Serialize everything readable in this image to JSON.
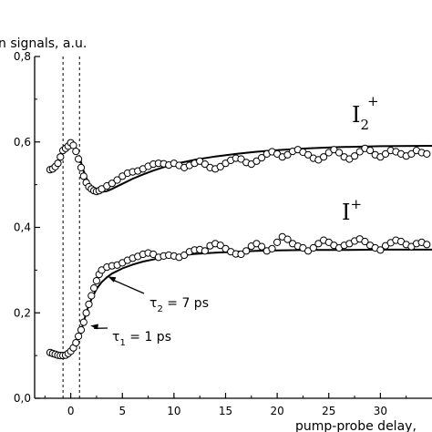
{
  "chart_data": {
    "type": "scatter",
    "ylabel": "n signals, a.u.",
    "xlabel": "pump-probe delay,",
    "xlim": [
      -3.5,
      35
    ],
    "ylim": [
      0,
      0.8
    ],
    "xticks": [
      0,
      5,
      10,
      15,
      20,
      25,
      30
    ],
    "xtick_labels": [
      "0",
      "5",
      "10",
      "15",
      "20",
      "25",
      "30"
    ],
    "yticks": [
      0,
      0.2,
      0.4,
      0.6,
      0.8
    ],
    "ytick_labels": [
      "0,0",
      "0,2",
      "0,4",
      "0,6",
      "0,8"
    ],
    "vlines": [
      -0.75,
      0.85
    ],
    "series": [
      {
        "name": "I2+",
        "label_main": "I",
        "label_sub": "2",
        "label_sup": "+",
        "points": [
          [
            -2.0,
            0.535
          ],
          [
            -1.75,
            0.537
          ],
          [
            -1.5,
            0.542
          ],
          [
            -1.25,
            0.55
          ],
          [
            -1.0,
            0.565
          ],
          [
            -0.75,
            0.58
          ],
          [
            -0.5,
            0.585
          ],
          [
            -0.25,
            0.59
          ],
          [
            0.0,
            0.598
          ],
          [
            0.25,
            0.592
          ],
          [
            0.5,
            0.578
          ],
          [
            0.75,
            0.56
          ],
          [
            1.0,
            0.54
          ],
          [
            1.25,
            0.52
          ],
          [
            1.5,
            0.505
          ],
          [
            1.75,
            0.495
          ],
          [
            2.0,
            0.49
          ],
          [
            2.25,
            0.486
          ],
          [
            2.5,
            0.484
          ],
          [
            2.75,
            0.486
          ],
          [
            3.0,
            0.49
          ],
          [
            3.5,
            0.497
          ],
          [
            4.0,
            0.503
          ],
          [
            4.5,
            0.511
          ],
          [
            5.0,
            0.52
          ],
          [
            5.5,
            0.527
          ],
          [
            6.0,
            0.53
          ],
          [
            6.5,
            0.532
          ],
          [
            7.0,
            0.537
          ],
          [
            7.5,
            0.543
          ],
          [
            8.0,
            0.548
          ],
          [
            8.5,
            0.55
          ],
          [
            9.0,
            0.549
          ],
          [
            9.5,
            0.546
          ],
          [
            10.0,
            0.55
          ],
          [
            10.5,
            0.545
          ],
          [
            11.0,
            0.54
          ],
          [
            11.5,
            0.545
          ],
          [
            12.0,
            0.55
          ],
          [
            12.5,
            0.555
          ],
          [
            13.0,
            0.548
          ],
          [
            13.5,
            0.54
          ],
          [
            14.0,
            0.537
          ],
          [
            14.5,
            0.542
          ],
          [
            15.0,
            0.55
          ],
          [
            15.5,
            0.557
          ],
          [
            16.0,
            0.562
          ],
          [
            16.5,
            0.56
          ],
          [
            17.0,
            0.552
          ],
          [
            17.5,
            0.548
          ],
          [
            18.0,
            0.555
          ],
          [
            18.5,
            0.563
          ],
          [
            19.0,
            0.572
          ],
          [
            19.5,
            0.577
          ],
          [
            20.0,
            0.572
          ],
          [
            20.5,
            0.565
          ],
          [
            21.0,
            0.57
          ],
          [
            21.5,
            0.578
          ],
          [
            22.0,
            0.582
          ],
          [
            22.5,
            0.576
          ],
          [
            23.0,
            0.57
          ],
          [
            23.5,
            0.562
          ],
          [
            24.0,
            0.558
          ],
          [
            24.5,
            0.565
          ],
          [
            25.0,
            0.575
          ],
          [
            25.5,
            0.582
          ],
          [
            26.0,
            0.575
          ],
          [
            26.5,
            0.565
          ],
          [
            27.0,
            0.56
          ],
          [
            27.5,
            0.567
          ],
          [
            28.0,
            0.577
          ],
          [
            28.5,
            0.585
          ],
          [
            29.0,
            0.58
          ],
          [
            29.5,
            0.57
          ],
          [
            30.0,
            0.565
          ],
          [
            30.5,
            0.572
          ],
          [
            31.0,
            0.58
          ],
          [
            31.5,
            0.577
          ],
          [
            32.0,
            0.572
          ],
          [
            32.5,
            0.567
          ],
          [
            33.0,
            0.572
          ],
          [
            33.5,
            0.58
          ],
          [
            34.0,
            0.575
          ],
          [
            34.5,
            0.572
          ]
        ],
        "fit": [
          [
            0.85,
            0.565
          ],
          [
            1.2,
            0.535
          ],
          [
            1.6,
            0.51
          ],
          [
            2.0,
            0.495
          ],
          [
            2.5,
            0.486
          ],
          [
            3.0,
            0.483
          ],
          [
            3.5,
            0.485
          ],
          [
            4.0,
            0.49
          ],
          [
            5.0,
            0.502
          ],
          [
            6.0,
            0.514
          ],
          [
            7.0,
            0.524
          ],
          [
            8.0,
            0.533
          ],
          [
            9.0,
            0.541
          ],
          [
            10.0,
            0.548
          ],
          [
            12.0,
            0.558
          ],
          [
            14.0,
            0.566
          ],
          [
            16.0,
            0.572
          ],
          [
            18.0,
            0.577
          ],
          [
            20.0,
            0.581
          ],
          [
            23.0,
            0.585
          ],
          [
            26.0,
            0.588
          ],
          [
            30.0,
            0.59
          ],
          [
            35.0,
            0.591
          ]
        ]
      },
      {
        "name": "I+",
        "label_main": "I",
        "label_sup": "+",
        "points": [
          [
            -2.0,
            0.107
          ],
          [
            -1.75,
            0.105
          ],
          [
            -1.5,
            0.103
          ],
          [
            -1.25,
            0.101
          ],
          [
            -1.0,
            0.1
          ],
          [
            -0.75,
            0.1
          ],
          [
            -0.5,
            0.101
          ],
          [
            -0.25,
            0.105
          ],
          [
            0.0,
            0.11
          ],
          [
            0.25,
            0.118
          ],
          [
            0.5,
            0.13
          ],
          [
            0.75,
            0.145
          ],
          [
            1.0,
            0.16
          ],
          [
            1.25,
            0.178
          ],
          [
            1.5,
            0.2
          ],
          [
            1.75,
            0.22
          ],
          [
            2.0,
            0.24
          ],
          [
            2.25,
            0.258
          ],
          [
            2.5,
            0.275
          ],
          [
            2.75,
            0.29
          ],
          [
            3.0,
            0.3
          ],
          [
            3.5,
            0.307
          ],
          [
            4.0,
            0.31
          ],
          [
            4.5,
            0.312
          ],
          [
            5.0,
            0.317
          ],
          [
            5.5,
            0.323
          ],
          [
            6.0,
            0.328
          ],
          [
            6.5,
            0.332
          ],
          [
            7.0,
            0.337
          ],
          [
            7.5,
            0.34
          ],
          [
            8.0,
            0.337
          ],
          [
            8.5,
            0.33
          ],
          [
            9.0,
            0.333
          ],
          [
            9.5,
            0.335
          ],
          [
            10.0,
            0.333
          ],
          [
            10.5,
            0.33
          ],
          [
            11.0,
            0.335
          ],
          [
            11.5,
            0.343
          ],
          [
            12.0,
            0.347
          ],
          [
            12.5,
            0.348
          ],
          [
            13.0,
            0.345
          ],
          [
            13.5,
            0.357
          ],
          [
            14.0,
            0.362
          ],
          [
            14.5,
            0.358
          ],
          [
            15.0,
            0.35
          ],
          [
            15.5,
            0.343
          ],
          [
            16.0,
            0.338
          ],
          [
            16.5,
            0.337
          ],
          [
            17.0,
            0.345
          ],
          [
            17.5,
            0.356
          ],
          [
            18.0,
            0.362
          ],
          [
            18.5,
            0.355
          ],
          [
            19.0,
            0.345
          ],
          [
            19.5,
            0.35
          ],
          [
            20.0,
            0.365
          ],
          [
            20.5,
            0.378
          ],
          [
            21.0,
            0.372
          ],
          [
            21.5,
            0.362
          ],
          [
            22.0,
            0.356
          ],
          [
            22.5,
            0.352
          ],
          [
            23.0,
            0.345
          ],
          [
            23.5,
            0.352
          ],
          [
            24.0,
            0.362
          ],
          [
            24.5,
            0.37
          ],
          [
            25.0,
            0.365
          ],
          [
            25.5,
            0.358
          ],
          [
            26.0,
            0.352
          ],
          [
            26.5,
            0.358
          ],
          [
            27.0,
            0.362
          ],
          [
            27.5,
            0.368
          ],
          [
            28.0,
            0.373
          ],
          [
            28.5,
            0.367
          ],
          [
            29.0,
            0.358
          ],
          [
            29.5,
            0.352
          ],
          [
            30.0,
            0.347
          ],
          [
            30.5,
            0.357
          ],
          [
            31.0,
            0.364
          ],
          [
            31.5,
            0.37
          ],
          [
            32.0,
            0.367
          ],
          [
            32.5,
            0.36
          ],
          [
            33.0,
            0.355
          ],
          [
            33.5,
            0.362
          ],
          [
            34.0,
            0.365
          ],
          [
            34.5,
            0.36
          ]
        ],
        "fit": [
          [
            0.85,
            0.14
          ],
          [
            1.2,
            0.175
          ],
          [
            1.6,
            0.208
          ],
          [
            2.0,
            0.232
          ],
          [
            2.5,
            0.256
          ],
          [
            3.0,
            0.272
          ],
          [
            3.5,
            0.283
          ],
          [
            4.0,
            0.292
          ],
          [
            5.0,
            0.304
          ],
          [
            6.0,
            0.313
          ],
          [
            7.0,
            0.32
          ],
          [
            8.0,
            0.325
          ],
          [
            9.0,
            0.33
          ],
          [
            10.0,
            0.333
          ],
          [
            12.0,
            0.338
          ],
          [
            14.0,
            0.341
          ],
          [
            16.0,
            0.343
          ],
          [
            18.0,
            0.345
          ],
          [
            20.0,
            0.346
          ],
          [
            23.0,
            0.347
          ],
          [
            26.0,
            0.347
          ],
          [
            30.0,
            0.348
          ],
          [
            35.0,
            0.348
          ]
        ]
      }
    ],
    "annotations": [
      {
        "id": "tau2",
        "sym": "τ",
        "sub": "2",
        "text": " = 7 ps",
        "arrow_to": [
          3.6,
          0.285
        ]
      },
      {
        "id": "tau1",
        "sym": "τ",
        "sub": "1",
        "text": " = 1 ps",
        "arrow_to": [
          1.9,
          0.17
        ]
      }
    ]
  }
}
